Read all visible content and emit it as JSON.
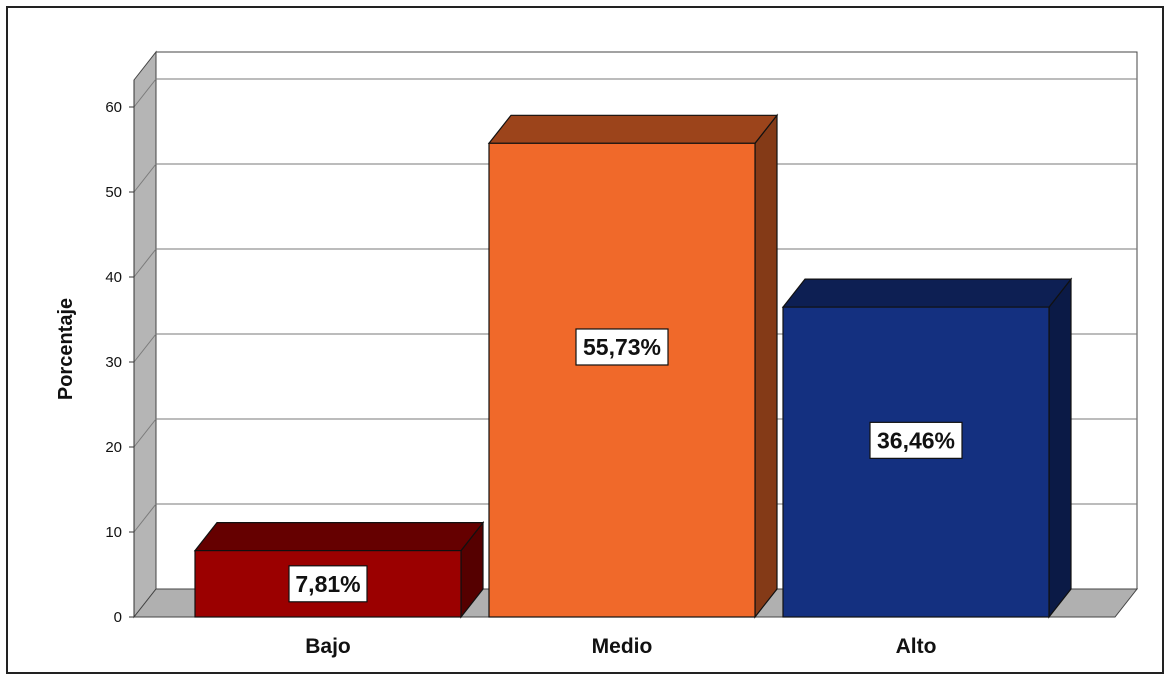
{
  "chart_data": {
    "type": "bar",
    "categories": [
      "Bajo",
      "Medio",
      "Alto"
    ],
    "values": [
      7.81,
      55.73,
      36.46
    ],
    "data_labels": [
      "7,81%",
      "55,73%",
      "36,46%"
    ],
    "bar_colors": [
      "#9b0000",
      "#f0692a",
      "#143080"
    ],
    "title": "",
    "xlabel": "",
    "ylabel": "Porcentaje",
    "ylim": [
      0,
      65
    ],
    "yticks": [
      0,
      10,
      20,
      30,
      40,
      50,
      60
    ],
    "grid": true,
    "style": "3d"
  }
}
